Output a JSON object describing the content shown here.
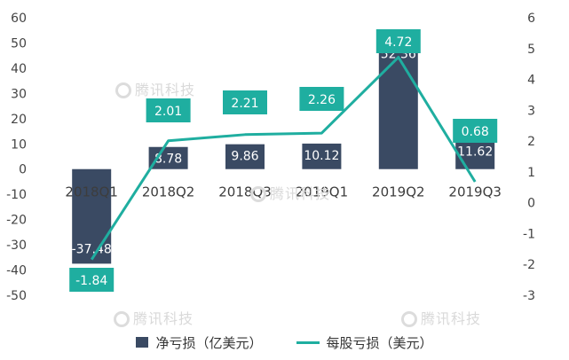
{
  "watermark": "腾讯科技",
  "chart_data": {
    "type": "bar",
    "categories": [
      "2018Q1",
      "2018Q2",
      "2018Q3",
      "2019Q1",
      "2019Q2",
      "2019Q3"
    ],
    "series": [
      {
        "name": "净亏损（亿美元）",
        "type": "bar",
        "axis": "left",
        "values": [
          -37.48,
          8.78,
          9.86,
          10.12,
          52.36,
          11.62
        ],
        "color": "#3a4a63"
      },
      {
        "name": "每股亏损（美元）",
        "type": "line",
        "axis": "right",
        "values": [
          -1.84,
          2.01,
          2.21,
          2.26,
          4.72,
          0.68
        ],
        "color": "#1faea0"
      }
    ],
    "left_axis": {
      "ylim": [
        -50,
        60
      ],
      "ticks": [
        60,
        50,
        40,
        30,
        20,
        10,
        0,
        -10,
        -20,
        -30,
        -40,
        -50
      ]
    },
    "right_axis": {
      "ylim": [
        -3,
        6
      ],
      "ticks": [
        6,
        5,
        4,
        3,
        2,
        1,
        0,
        -1,
        -2,
        -3
      ]
    },
    "bar_labels": [
      "-37.48",
      "8.78",
      "9.86",
      "10.12",
      "52.36",
      "11.62"
    ],
    "line_labels": [
      "-1.84",
      "2.01",
      "2.21",
      "2.26",
      "4.72",
      "0.68"
    ],
    "grid": false,
    "legend_position": "bottom"
  }
}
